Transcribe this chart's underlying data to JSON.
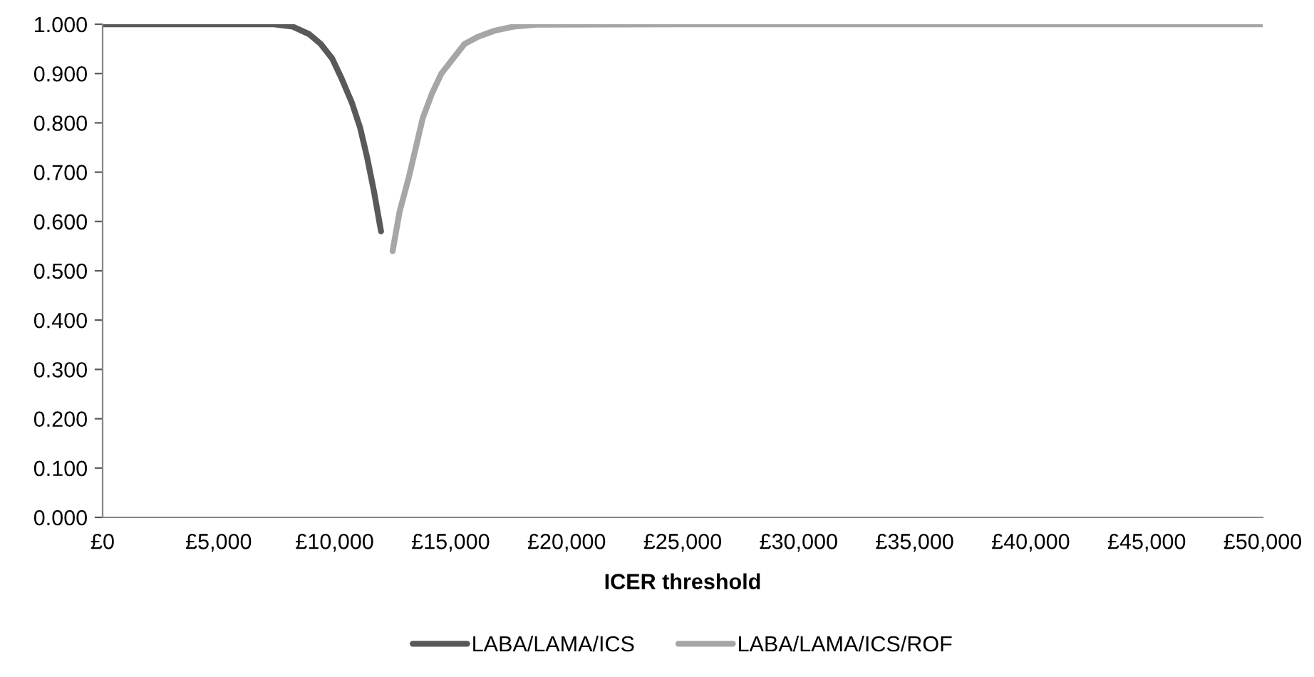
{
  "chart_data": {
    "type": "line",
    "xlabel": "ICER threshold",
    "xlim": [
      0,
      50000
    ],
    "ylim": [
      0,
      1
    ],
    "xticks": [
      {
        "value": 0,
        "label": "£0"
      },
      {
        "value": 5000,
        "label": "£5,000"
      },
      {
        "value": 10000,
        "label": "£10,000"
      },
      {
        "value": 15000,
        "label": "£15,000"
      },
      {
        "value": 20000,
        "label": "£20,000"
      },
      {
        "value": 25000,
        "label": "£25,000"
      },
      {
        "value": 30000,
        "label": "£30,000"
      },
      {
        "value": 35000,
        "label": "£35,000"
      },
      {
        "value": 40000,
        "label": "£40,000"
      },
      {
        "value": 45000,
        "label": "£45,000"
      },
      {
        "value": 50000,
        "label": "£50,000"
      }
    ],
    "yticks": [
      {
        "value": 0,
        "label": "0.000"
      },
      {
        "value": 0.1,
        "label": "0.100"
      },
      {
        "value": 0.2,
        "label": "0.200"
      },
      {
        "value": 0.3,
        "label": "0.300"
      },
      {
        "value": 0.4,
        "label": "0.400"
      },
      {
        "value": 0.5,
        "label": "0.500"
      },
      {
        "value": 0.6,
        "label": "0.600"
      },
      {
        "value": 0.7,
        "label": "0.700"
      },
      {
        "value": 0.8,
        "label": "0.800"
      },
      {
        "value": 0.9,
        "label": "0.900"
      },
      {
        "value": 1,
        "label": "1.000"
      }
    ],
    "grid": false,
    "legend": "bottom",
    "marker": "none",
    "line_style": "solid",
    "series": [
      {
        "name": "LABA/LAMA/ICS",
        "color": "#595959",
        "x": [
          0,
          5000,
          7400,
          8200,
          8900,
          9400,
          9900,
          10300,
          10750,
          11100,
          11400,
          11700,
          12000
        ],
        "values": [
          1,
          1,
          1,
          0.995,
          0.98,
          0.96,
          0.93,
          0.89,
          0.84,
          0.79,
          0.73,
          0.66,
          0.58
        ]
      },
      {
        "name": "LABA/LAMA/ICS/ROF",
        "color": "#a6a6a6",
        "x": [
          12500,
          12800,
          13200,
          13800,
          14200,
          14600,
          15100,
          15600,
          16200,
          16900,
          17700,
          18700,
          25000,
          50000
        ],
        "values": [
          0.54,
          0.62,
          0.69,
          0.81,
          0.86,
          0.9,
          0.93,
          0.96,
          0.975,
          0.987,
          0.995,
          0.999,
          1,
          1
        ]
      }
    ]
  }
}
